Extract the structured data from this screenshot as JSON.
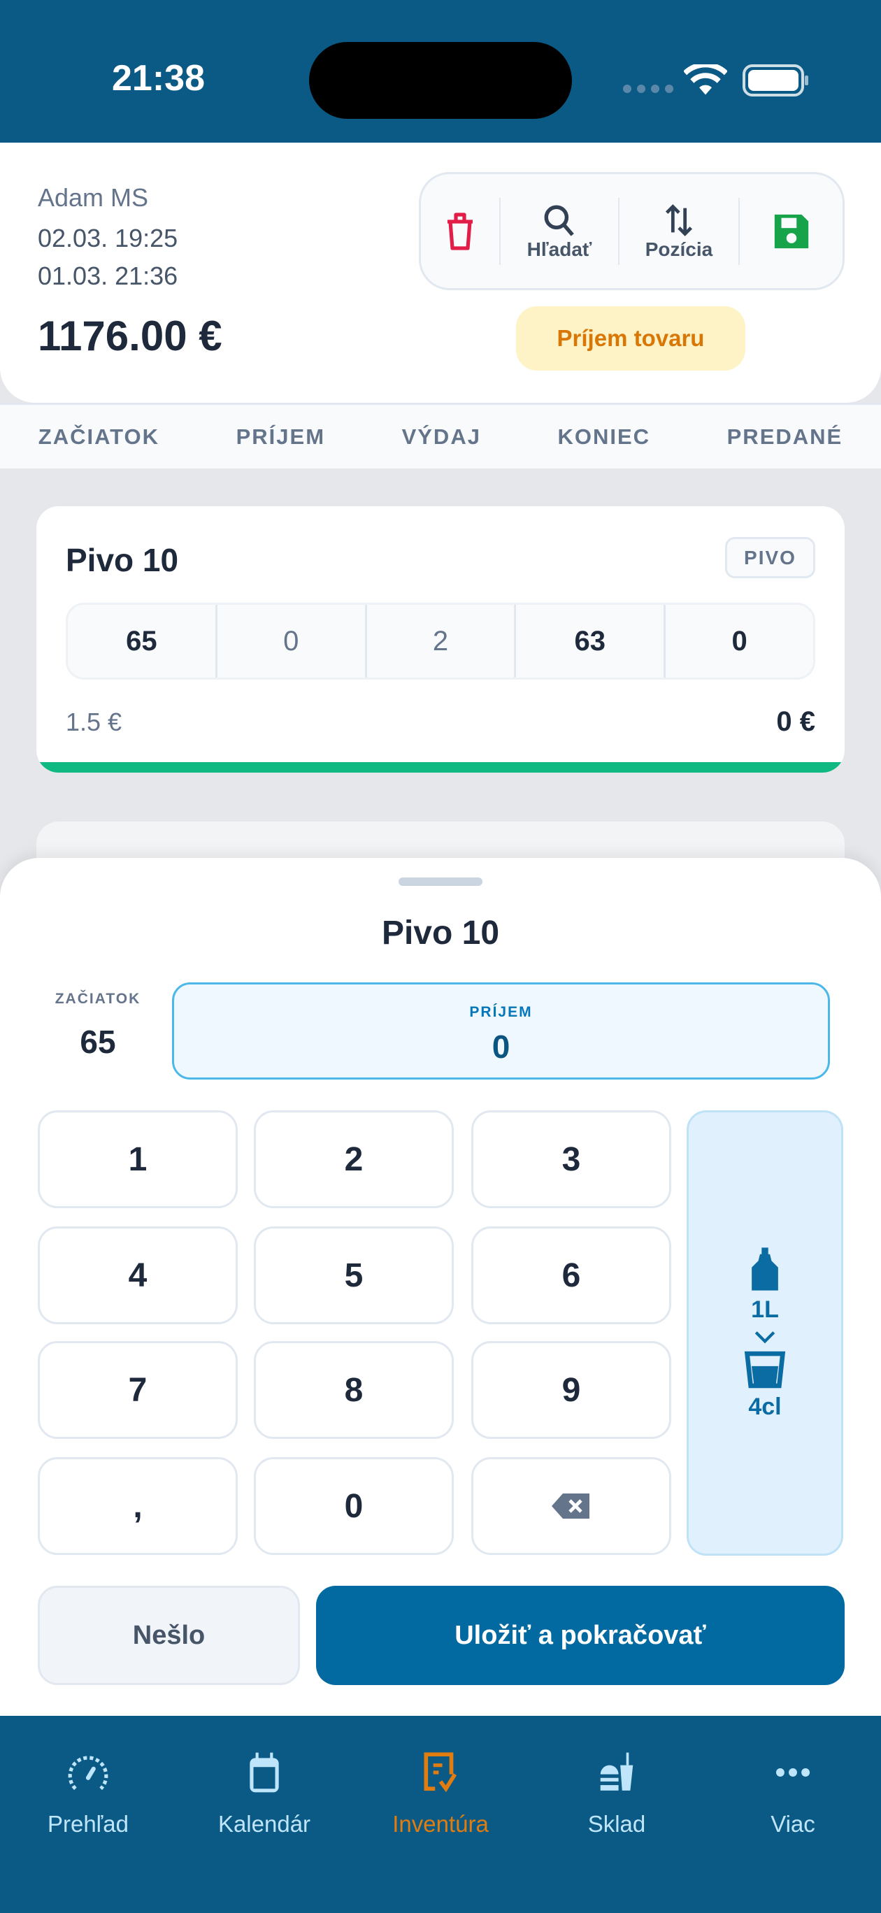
{
  "status_bar": {
    "time": "21:38"
  },
  "header": {
    "user": "Adam MS",
    "date_end": "02.03. 19:25",
    "date_start": "01.03. 21:36",
    "total": "1176.00 €",
    "toolbar": {
      "search": "Hľadať",
      "position": "Pozícia"
    },
    "receive_button": "Príjem tovaru"
  },
  "columns": [
    "ZAČIATOK",
    "PRÍJEM",
    "VÝDAJ",
    "KONIEC",
    "PREDANÉ"
  ],
  "item_card": {
    "name": "Pivo 10",
    "category": "PIVO",
    "values": [
      "65",
      "0",
      "2",
      "63",
      "0"
    ],
    "unit_price": "1.5 €",
    "sold_total": "0 €",
    "progress": 1.0
  },
  "sheet": {
    "title": "Pivo 10",
    "start_label": "ZAČIATOK",
    "start_value": "65",
    "input_label": "PRÍJEM",
    "input_value": "0",
    "keys": [
      "1",
      "2",
      "3",
      "4",
      "5",
      "6",
      "7",
      "8",
      "9",
      ",",
      "0"
    ],
    "unit_toggle": {
      "from": "1L",
      "to": "4cl"
    },
    "skip_button": "Nešlo",
    "save_button": "Uložiť a pokračovať"
  },
  "nav": {
    "items": [
      {
        "label": "Prehľad",
        "icon": "speedometer-icon"
      },
      {
        "label": "Kalendár",
        "icon": "calendar-icon"
      },
      {
        "label": "Inventúra",
        "icon": "inventory-icon",
        "active": true
      },
      {
        "label": "Sklad",
        "icon": "food-drink-icon"
      },
      {
        "label": "Viac",
        "icon": "more-icon"
      }
    ]
  },
  "colors": {
    "brand": "#0a5a85",
    "accent": "#e07c10",
    "progress": "#10b981",
    "primary_button": "#036aa1"
  }
}
